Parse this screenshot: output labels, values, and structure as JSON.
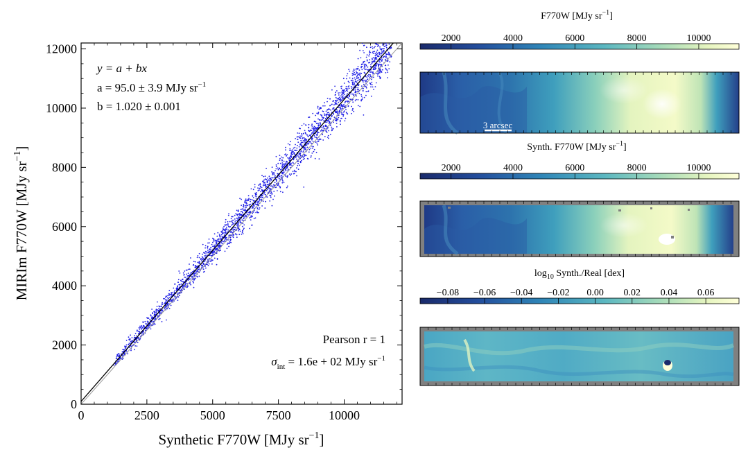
{
  "scatter": {
    "xlabel_main": "Synthetic F770W [MJy sr",
    "xlabel_sup": "−1",
    "xlabel_end": "]",
    "ylabel_main": "MIRIm F770W [MJy sr",
    "ylabel_sup": "−1",
    "ylabel_end": "]",
    "fit": {
      "equation": "y = a + bx",
      "a_text": "a = 95.0 ± 3.9 MJy sr",
      "a_sup": "−1",
      "b_text": "b = 1.020 ± 0.001"
    },
    "stats": {
      "pearson": "Pearson r = 1",
      "sigma_text": "σ",
      "sigma_sub": "int",
      "sigma_value": " = 1.6e + 02 MJy sr",
      "sigma_sup": "−1"
    }
  },
  "panels": [
    {
      "colorbar_label": "F770W [MJy sr",
      "colorbar_sup": "−1",
      "colorbar_end": "]",
      "scalebar_label": "3 arcsec"
    },
    {
      "colorbar_label": "Synth. F770W [MJy sr",
      "colorbar_sup": "−1",
      "colorbar_end": "]"
    },
    {
      "colorbar_label": "log",
      "colorbar_sub": "10",
      "colorbar_end": " Synth./Real [dex]"
    }
  ],
  "colors": {
    "scatter_points": "#1f1fe6",
    "fit_line": "#000000",
    "mask_gray": "#808080",
    "colormap": [
      "#1a2a6b",
      "#234d9c",
      "#2f86b8",
      "#5cb8c1",
      "#a8dcb9",
      "#e6f5c0",
      "#ffffd9"
    ]
  },
  "chart_data": [
    {
      "type": "scatter",
      "title": "",
      "xlabel": "Synthetic F770W [MJy sr−1]",
      "ylabel": "MIRIm F770W [MJy sr−1]",
      "xlim": [
        0,
        12200
      ],
      "ylim": [
        0,
        12200
      ],
      "xticks": [
        0,
        2500,
        5000,
        7500,
        10000
      ],
      "yticks": [
        0,
        2000,
        4000,
        6000,
        8000,
        10000,
        12000
      ],
      "grid": false,
      "fit_line": {
        "a": 95.0,
        "b": 1.02
      },
      "one_to_one_line": true,
      "series": [
        {
          "x_range": [
            1250,
            11800
          ],
          "relation": "y ≈ 95.0 + 1.020x",
          "scatter_spread_approx": 250
        }
      ]
    },
    {
      "type": "heatmap",
      "colorbar_label": "F770W [MJy sr−1]",
      "colorbar_ticks": [
        2000,
        4000,
        6000,
        8000,
        10000
      ],
      "colorbar_range": [
        1000,
        11300
      ]
    },
    {
      "type": "heatmap",
      "colorbar_label": "Synth. F770W [MJy sr−1]",
      "colorbar_ticks": [
        2000,
        4000,
        6000,
        8000,
        10000
      ],
      "colorbar_range": [
        1000,
        11300
      ]
    },
    {
      "type": "heatmap",
      "colorbar_label": "log10 Synth./Real [dex]",
      "colorbar_ticks": [
        -0.08,
        -0.06,
        -0.04,
        -0.02,
        0.0,
        0.02,
        0.04,
        0.06
      ],
      "colorbar_tick_labels": [
        "−0.08",
        "−0.06",
        "−0.04",
        "−0.02",
        "0.00",
        "0.02",
        "0.04",
        "0.06"
      ],
      "colorbar_range": [
        -0.095,
        0.078
      ]
    }
  ]
}
